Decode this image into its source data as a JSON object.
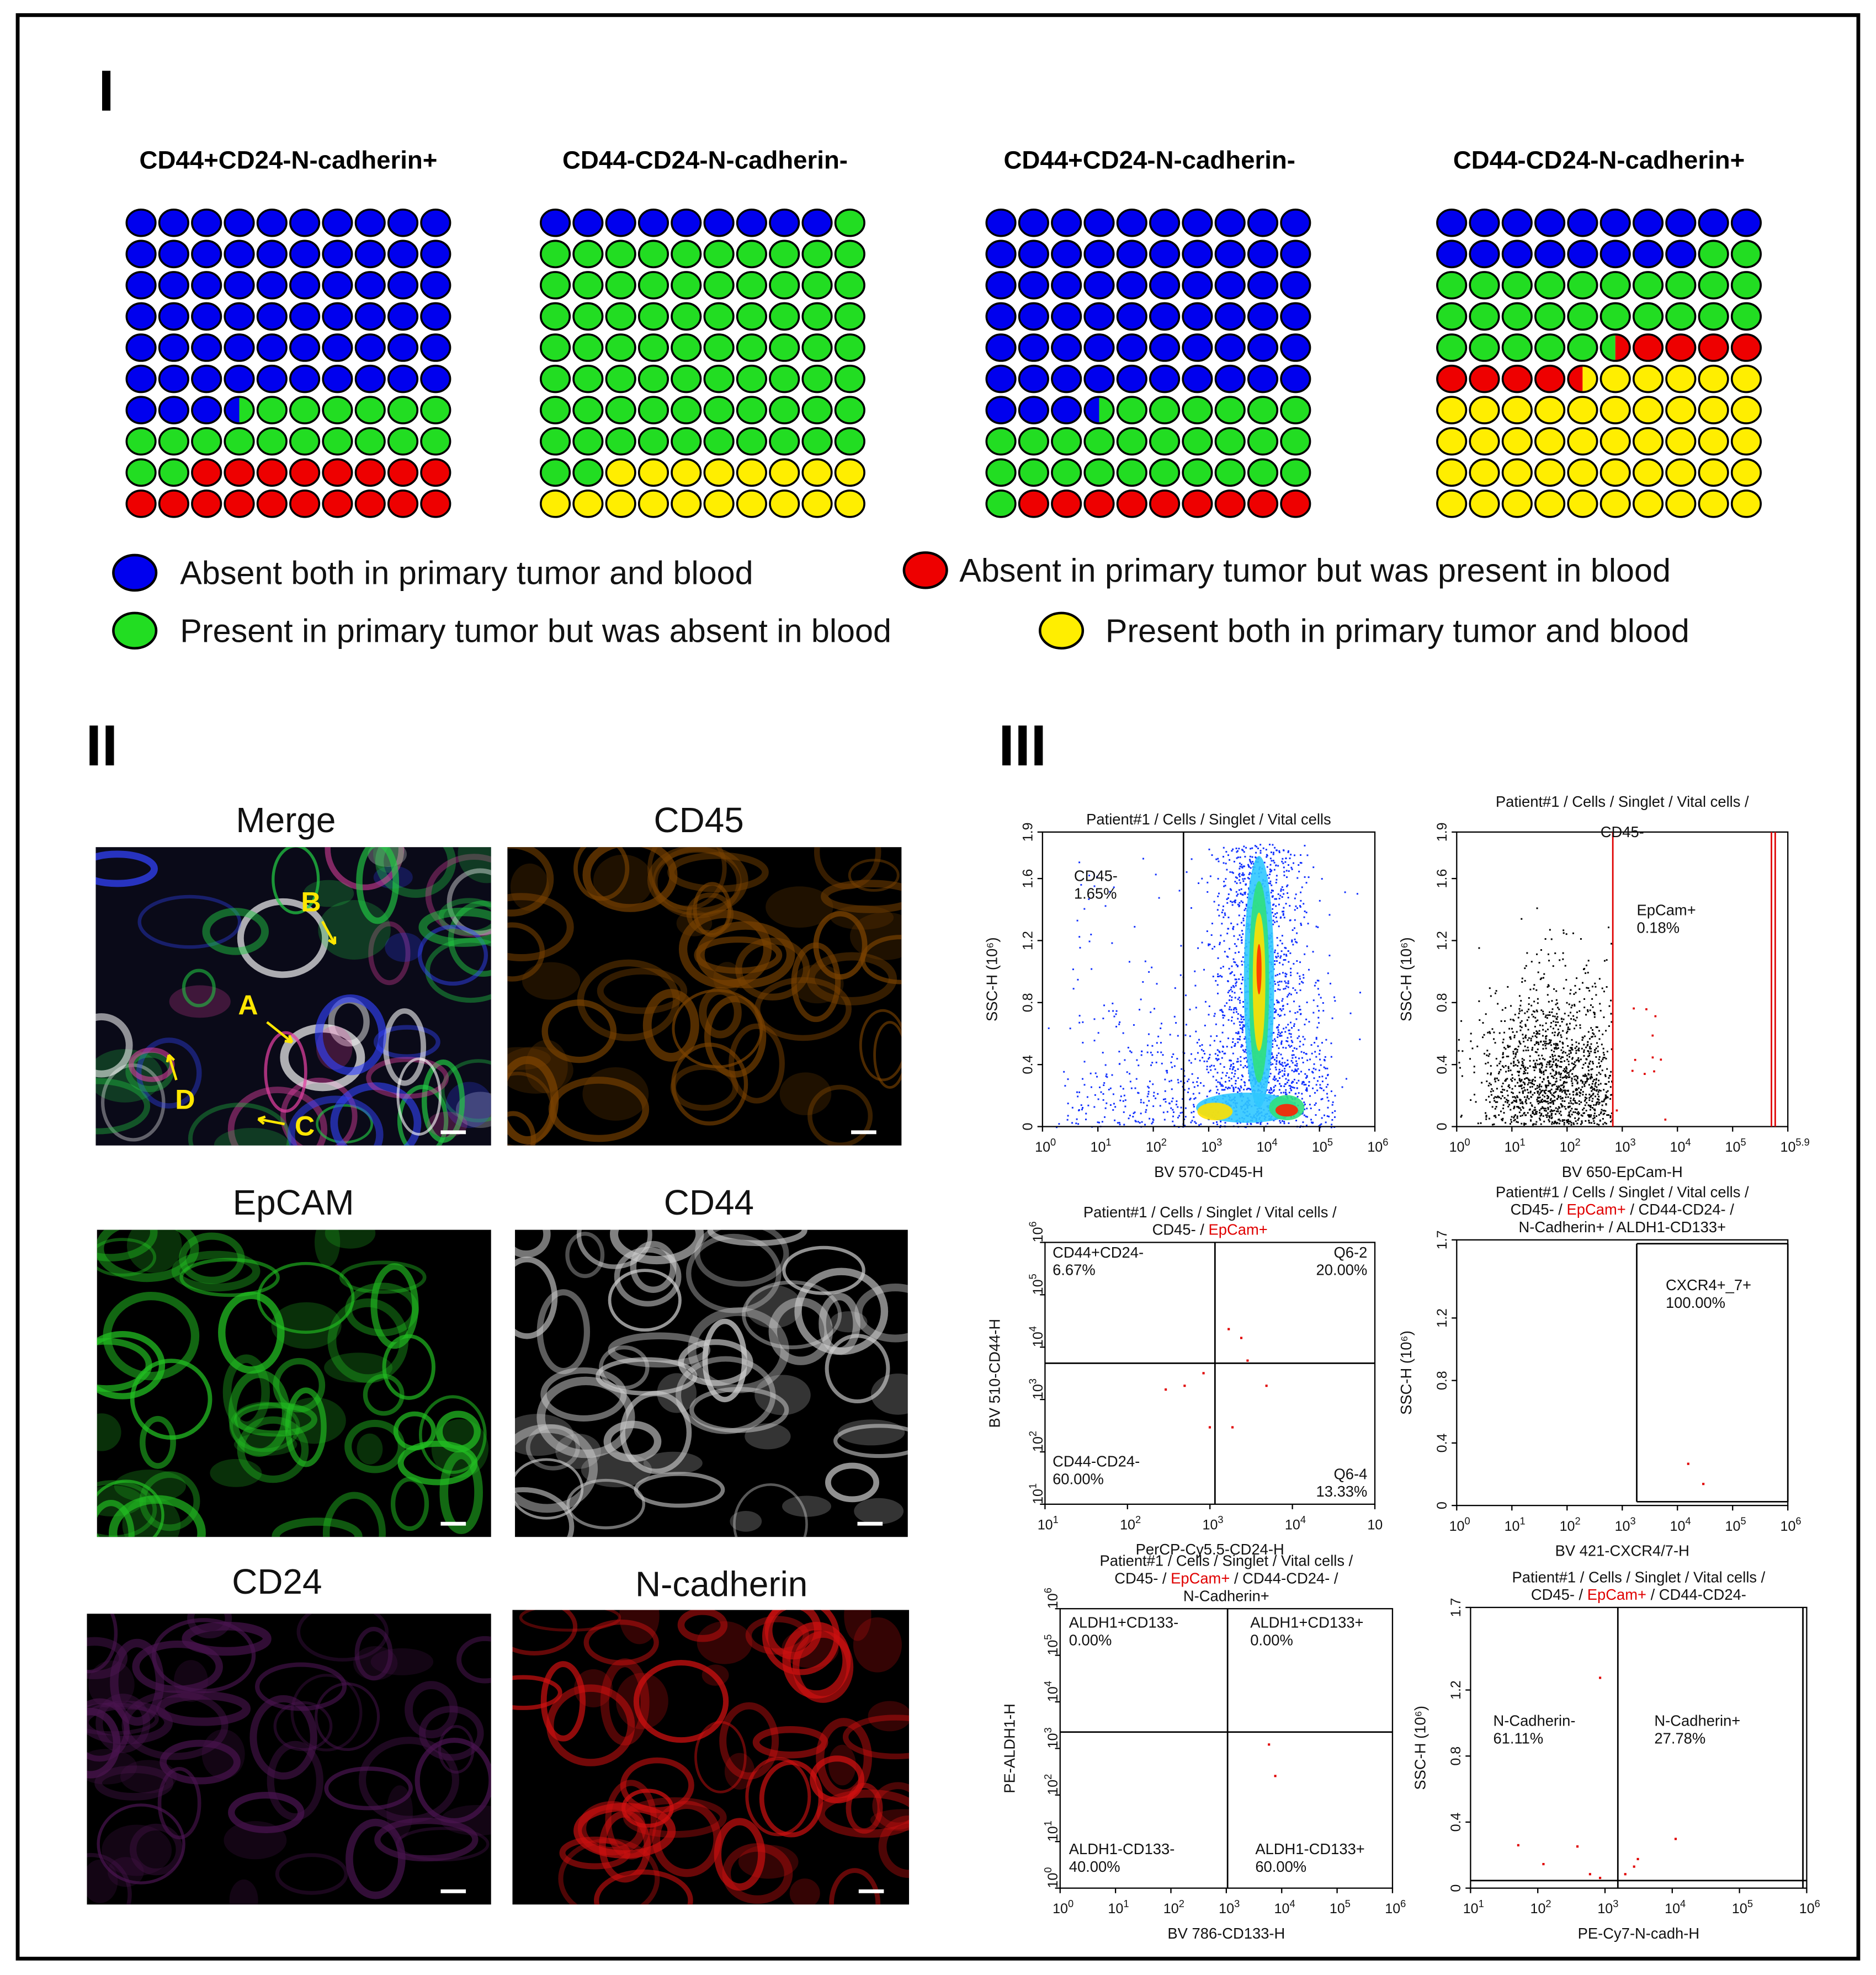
{
  "panel_labels": [
    "I",
    "II",
    "III"
  ],
  "waffle": {
    "legend": [
      {
        "label": "Absent both in primary tumor and blood",
        "color": "#0000ee"
      },
      {
        "label": "Absent in primary tumor but was present in blood",
        "color": "#ee0000"
      },
      {
        "label": "Present in primary tumor but was absent in blood",
        "color": "#22dd22"
      },
      {
        "label": "Present both in primary tumor and blood",
        "color": "#ffee00"
      }
    ],
    "charts": [
      {
        "title": "CD44+CD24-N-cadherin+",
        "counts": [
          63.5,
          18,
          18.5,
          0
        ]
      },
      {
        "title": "CD44-CD24-N-cadherin-",
        "counts": [
          9,
          0,
          73,
          18
        ]
      },
      {
        "title": "CD44+CD24-N-cadherin-",
        "counts": [
          63.5,
          9,
          27.5,
          0
        ]
      },
      {
        "title": "CD44-CD24-N-cadherin+",
        "counts": [
          18,
          9,
          27.5,
          45.5
        ]
      }
    ]
  },
  "images": [
    {
      "title": "Merge",
      "markers": [
        "A",
        "B",
        "C",
        "D"
      ]
    },
    {
      "title": "CD45"
    },
    {
      "title": "EpCAM"
    },
    {
      "title": "CD44"
    },
    {
      "title": "CD24"
    },
    {
      "title": "N-cadherin"
    }
  ],
  "flow": {
    "highlight": "EpCam+",
    "highlight_color": "#e00000",
    "plots": [
      {
        "title": [
          "Patient#1 / Cells / Singlet / Vital cells"
        ],
        "x_label": "BV 570-CD45-H",
        "y_label": "SSC-H (10⁶)",
        "xticks": [
          {
            "b": "10",
            "e": "0"
          },
          {
            "b": "10",
            "e": "1"
          },
          {
            "b": "10",
            "e": "2"
          },
          {
            "b": "10",
            "e": "3"
          },
          {
            "b": "10",
            "e": "4"
          },
          {
            "b": "10",
            "e": "5"
          },
          {
            "b": "10",
            "e": "6"
          }
        ],
        "yticks": [
          "0",
          "0.4",
          "0.8",
          "1.2",
          "1.6",
          "1.9"
        ],
        "gates": [
          {
            "lines": [
              "CD45-",
              "1.65%"
            ]
          }
        ]
      },
      {
        "title": [
          "Patient#1 / Cells / Singlet / Vital cells /",
          "CD45-"
        ],
        "x_label": "BV 650-EpCam-H",
        "y_label": "SSC-H (10⁶)",
        "xticks": [
          {
            "b": "10",
            "e": "0"
          },
          {
            "b": "10",
            "e": "1"
          },
          {
            "b": "10",
            "e": "2"
          },
          {
            "b": "10",
            "e": "3"
          },
          {
            "b": "10",
            "e": "4"
          },
          {
            "b": "10",
            "e": "5"
          },
          {
            "b": "10",
            "e": "5.9"
          }
        ],
        "yticks": [
          "0",
          "0.4",
          "0.8",
          "1.2",
          "1.6",
          "1.9"
        ],
        "gates": [
          {
            "lines": [
              "EpCam+",
              "0.18%"
            ],
            "color": "#e00000"
          }
        ]
      },
      {
        "title": [
          "Patient#1 / Cells / Singlet / Vital cells /",
          "CD45- / EpCam+"
        ],
        "x_label": "PerCP-Cy5.5-CD24-H",
        "y_label": "BV 510-CD44-H",
        "xticks": [
          {
            "b": "10",
            "e": "1"
          },
          {
            "b": "10",
            "e": "2"
          },
          {
            "b": "10",
            "e": "3"
          },
          {
            "b": "10",
            "e": "4"
          },
          {
            "b": "10",
            "e": ""
          }
        ],
        "ylog": [
          {
            "b": "10",
            "e": "1"
          },
          {
            "b": "10",
            "e": "2"
          },
          {
            "b": "10",
            "e": "3"
          },
          {
            "b": "10",
            "e": "4"
          },
          {
            "b": "10",
            "e": "5"
          },
          {
            "b": "10",
            "e": "6"
          }
        ],
        "gates": [
          {
            "lines": [
              "CD44+CD24-",
              "6.67%"
            ]
          },
          {
            "lines": [
              "Q6-2",
              "20.00%"
            ]
          },
          {
            "lines": [
              "CD44-CD24-",
              "60.00%"
            ]
          },
          {
            "lines": [
              "Q6-4",
              "13.33%"
            ]
          }
        ]
      },
      {
        "title": [
          "Patient#1 / Cells / Singlet / Vital cells /",
          "CD45- / EpCam+ / CD44-CD24- /",
          "N-Cadherin+ / ALDH1-CD133+"
        ],
        "x_label": "BV 421-CXCR4/7-H",
        "y_label": "SSC-H (10⁶)",
        "xticks": [
          {
            "b": "10",
            "e": "0"
          },
          {
            "b": "10",
            "e": "1"
          },
          {
            "b": "10",
            "e": "2"
          },
          {
            "b": "10",
            "e": "3"
          },
          {
            "b": "10",
            "e": "4"
          },
          {
            "b": "10",
            "e": "5"
          },
          {
            "b": "10",
            "e": "6"
          }
        ],
        "yticks": [
          "0",
          "0.4",
          "0.8",
          "1.2",
          "1.7"
        ],
        "gates": [
          {
            "lines": [
              "CXCR4+_7+",
              "100.00%"
            ]
          }
        ]
      },
      {
        "title": [
          "Patient#1 / Cells / Singlet / Vital cells /",
          "CD45- / EpCam+ / CD44-CD24- /",
          "N-Cadherin+"
        ],
        "x_label": "BV 786-CD133-H",
        "y_label": "PE-ALDH1-H",
        "xticks": [
          {
            "b": "10",
            "e": "0"
          },
          {
            "b": "10",
            "e": "1"
          },
          {
            "b": "10",
            "e": "2"
          },
          {
            "b": "10",
            "e": "3"
          },
          {
            "b": "10",
            "e": "4"
          },
          {
            "b": "10",
            "e": "5"
          },
          {
            "b": "10",
            "e": "6"
          }
        ],
        "ylog": [
          {
            "b": "10",
            "e": "0"
          },
          {
            "b": "10",
            "e": "1"
          },
          {
            "b": "10",
            "e": "2"
          },
          {
            "b": "10",
            "e": "3"
          },
          {
            "b": "10",
            "e": "4"
          },
          {
            "b": "10",
            "e": "5"
          },
          {
            "b": "10",
            "e": "6"
          }
        ],
        "gates": [
          {
            "lines": [
              "ALDH1+CD133-",
              "0.00%"
            ]
          },
          {
            "lines": [
              "ALDH1+CD133+",
              "0.00%"
            ]
          },
          {
            "lines": [
              "ALDH1-CD133-",
              "40.00%"
            ]
          },
          {
            "lines": [
              "ALDH1-CD133+",
              "60.00%"
            ]
          }
        ]
      },
      {
        "title": [
          "Patient#1 / Cells / Singlet / Vital cells /",
          "CD45- / EpCam+ / CD44-CD24-"
        ],
        "x_label": "PE-Cy7-N-cadh-H",
        "y_label": "SSC-H (10⁶)",
        "xticks": [
          {
            "b": "10",
            "e": "1"
          },
          {
            "b": "10",
            "e": "2"
          },
          {
            "b": "10",
            "e": "3"
          },
          {
            "b": "10",
            "e": "4"
          },
          {
            "b": "10",
            "e": "5"
          },
          {
            "b": "10",
            "e": "6"
          }
        ],
        "yticks": [
          "0",
          "0.4",
          "0.8",
          "1.2",
          "1.7"
        ],
        "gates": [
          {
            "lines": [
              "N-Cadherin-",
              "61.11%"
            ]
          },
          {
            "lines": [
              "N-Cadherin+",
              "27.78%"
            ]
          }
        ]
      }
    ]
  }
}
